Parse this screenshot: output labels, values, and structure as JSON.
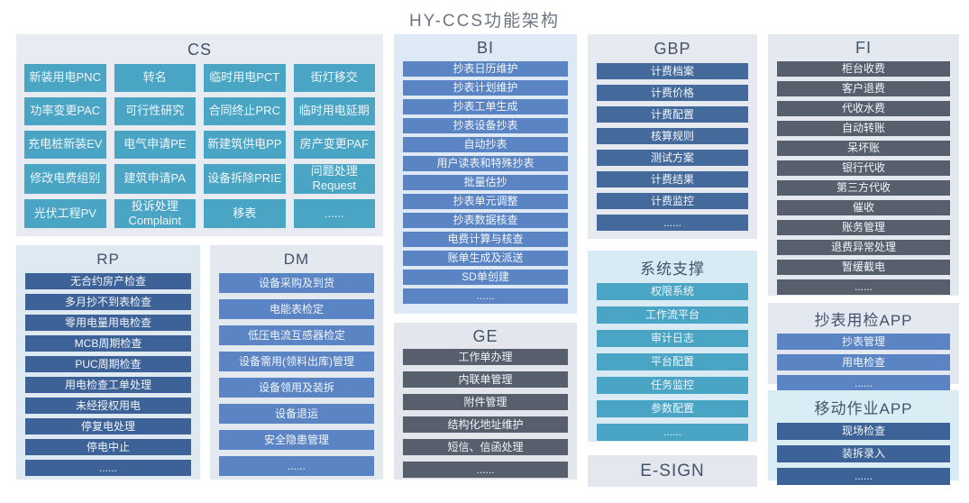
{
  "title": "HY-CCS功能架构",
  "colors": {
    "teal_button": "#4aa5c5",
    "blue_button": "#5b84c4",
    "dark_blue_button": "#3d6298",
    "steel_blue_button": "#44699b",
    "slate_button": "#575f6d",
    "button_text": "#f2f6fa",
    "panel_title_text": "#44536a",
    "page_title_text": "#6d7582"
  },
  "panels": {
    "cs": {
      "title": "CS",
      "items": [
        "新装用电PNC",
        "转名",
        "临时用电PCT",
        "街灯移交",
        "功率变更PAC",
        "可行性研究",
        "合同终止PRC",
        "临时用电延期",
        "充电桩新装EV",
        "电气申请PE",
        "新建筑供电PP",
        "房产变更PAF",
        "修改电费组别",
        "建筑申请PA",
        "设备拆除PRIE",
        "问题处理\nRequest",
        "光伏工程PV",
        "投诉处理\nComplaint",
        "移表",
        "......"
      ]
    },
    "rp": {
      "title": "RP",
      "items": [
        "无合约房产检查",
        "多月抄不到表检查",
        "零用电量用电检查",
        "MCB周期检查",
        "PUC周期检查",
        "用电检查工单处理",
        "未经授权用电",
        "停复电处理",
        "停电中止",
        "......"
      ]
    },
    "dm": {
      "title": "DM",
      "items": [
        "设备采购及到货",
        "电能表检定",
        "低压电流互感器检定",
        "设备需用(领料出库)管理",
        "设备领用及装拆",
        "设备退运",
        "安全隐患管理",
        "......"
      ]
    },
    "bi": {
      "title": "BI",
      "items": [
        "抄表日历维护",
        "抄表计划维护",
        "抄表工单生成",
        "抄表设备抄表",
        "自动抄表",
        "用户读表和特殊抄表",
        "批量估抄",
        "抄表单元调整",
        "抄表数据核查",
        "电费计算与核查",
        "账单生成及派送",
        "SD单创建",
        "......"
      ]
    },
    "ge": {
      "title": "GE",
      "items": [
        "工作单办理",
        "内联单管理",
        "附件管理",
        "结构化地址维护",
        "短信、信函处理",
        "......"
      ]
    },
    "gbp": {
      "title": "GBP",
      "items": [
        "计费档案",
        "计费价格",
        "计费配置",
        "核算规则",
        "测试方案",
        "计费结果",
        "计费监控",
        "......"
      ]
    },
    "support": {
      "title": "系统支撑",
      "items": [
        "权限系统",
        "工作流平台",
        "审计日志",
        "平台配置",
        "任务监控",
        "参数配置",
        "......"
      ]
    },
    "esign": {
      "title": "E-SIGN"
    },
    "fi": {
      "title": "FI",
      "items": [
        "柜台收费",
        "客户退费",
        "代收水费",
        "自动转账",
        "呆坏账",
        "银行代收",
        "第三方代收",
        "催收",
        "账务管理",
        "退费异常处理",
        "暂缓截电",
        "......"
      ]
    },
    "meter_app": {
      "title": "抄表用检APP",
      "items": [
        "抄表管理",
        "用电检查",
        "......"
      ]
    },
    "mobile_app": {
      "title": "移动作业APP",
      "items": [
        "现场检查",
        "装拆录入",
        "......"
      ]
    }
  }
}
